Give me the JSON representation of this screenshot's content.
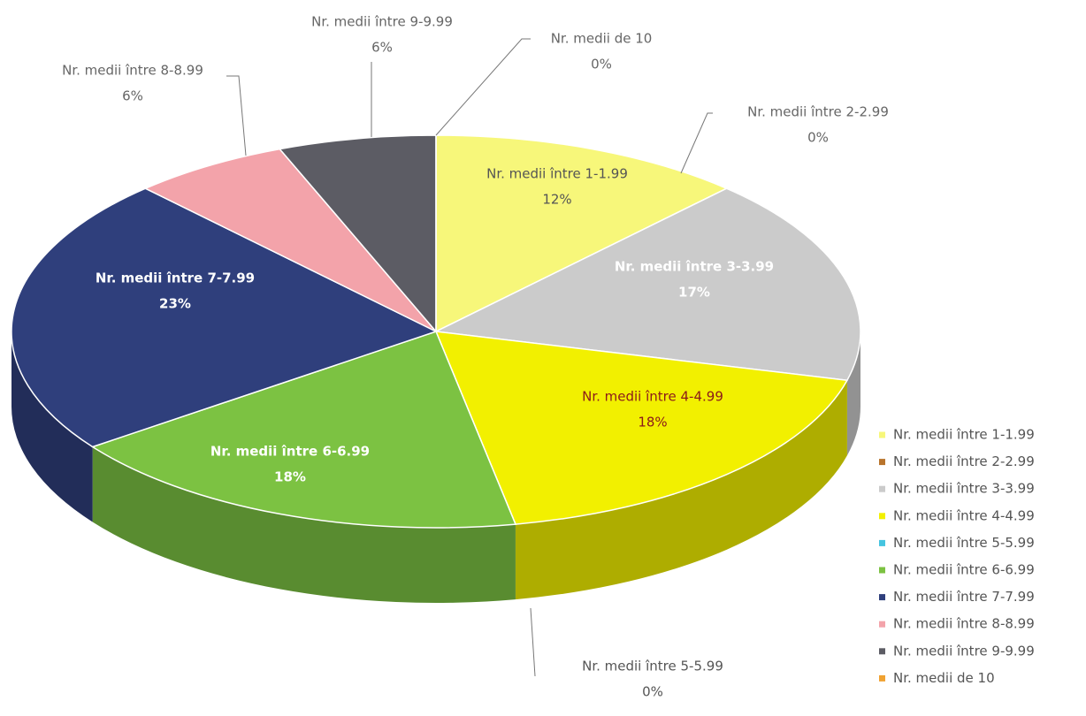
{
  "chart_data": {
    "type": "pie3d",
    "categories": [
      "Nr. medii între 1-1.99",
      "Nr. medii între 2-2.99",
      "Nr. medii între 3-3.99",
      "Nr. medii între 4-4.99",
      "Nr. medii între 5-5.99",
      "Nr. medii între 6-6.99",
      "Nr. medii între 7-7.99",
      "Nr. medii între 8-8.99",
      "Nr. medii între 9-9.99",
      "Nr. medii de 10"
    ],
    "values": [
      12,
      0,
      17,
      18,
      0,
      18,
      23,
      6,
      6,
      0
    ],
    "value_labels": [
      "12%",
      "0%",
      "17%",
      "18%",
      "0%",
      "18%",
      "23%",
      "6%",
      "6%",
      "0%"
    ],
    "colors": [
      "#f7f77a",
      "#b8742c",
      "#cbcbcb",
      "#f2f000",
      "#45c4e0",
      "#7cc242",
      "#2f3f7c",
      "#f3a3aa",
      "#5c5c64",
      "#f0a232"
    ],
    "legend": "right"
  }
}
